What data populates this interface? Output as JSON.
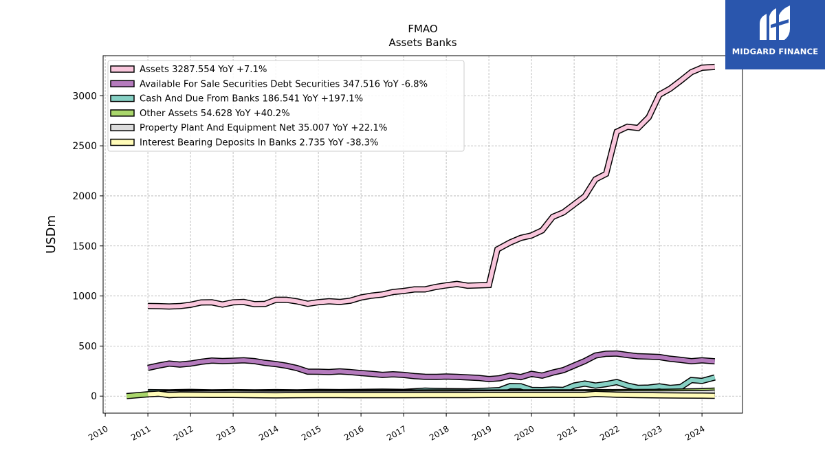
{
  "brand": {
    "name": "MIDGARD FINANCE",
    "bg_color": "#2a56ad"
  },
  "chart_data": {
    "type": "line",
    "title": "FMAO",
    "subtitle": "Assets Banks",
    "xlabel": "",
    "ylabel": "USDm",
    "xlim": [
      2009.95,
      2024.95
    ],
    "ylim": [
      -170,
      3400
    ],
    "x_ticks": [
      2010,
      2011,
      2012,
      2013,
      2014,
      2015,
      2016,
      2017,
      2018,
      2019,
      2020,
      2021,
      2022,
      2023,
      2024
    ],
    "y_ticks": [
      0,
      500,
      1000,
      1500,
      2000,
      2500,
      3000
    ],
    "grid": true,
    "legend_position": "top-left",
    "series": [
      {
        "name": "Assets",
        "legend": "Assets  3287.554 YoY +7.1%",
        "color": "#f9c6dc",
        "points": [
          [
            2011.0,
            900
          ],
          [
            2011.25,
            898
          ],
          [
            2011.5,
            895
          ],
          [
            2011.75,
            899
          ],
          [
            2012.0,
            912
          ],
          [
            2012.25,
            935
          ],
          [
            2012.5,
            937
          ],
          [
            2012.75,
            915
          ],
          [
            2013.0,
            937
          ],
          [
            2013.25,
            940
          ],
          [
            2013.5,
            918
          ],
          [
            2013.75,
            921
          ],
          [
            2014.0,
            962
          ],
          [
            2014.25,
            962
          ],
          [
            2014.5,
            946
          ],
          [
            2014.75,
            922
          ],
          [
            2015.0,
            938
          ],
          [
            2015.25,
            947
          ],
          [
            2015.5,
            940
          ],
          [
            2015.75,
            953
          ],
          [
            2016.0,
            985
          ],
          [
            2016.25,
            1003
          ],
          [
            2016.5,
            1015
          ],
          [
            2016.75,
            1040
          ],
          [
            2017.0,
            1050
          ],
          [
            2017.25,
            1066
          ],
          [
            2017.5,
            1066
          ],
          [
            2017.75,
            1090
          ],
          [
            2018.0,
            1106
          ],
          [
            2018.25,
            1120
          ],
          [
            2018.5,
            1103
          ],
          [
            2018.75,
            1106
          ],
          [
            2019.0,
            1110
          ],
          [
            2019.2,
            1465
          ],
          [
            2019.5,
            1535
          ],
          [
            2019.75,
            1580
          ],
          [
            2020.0,
            1605
          ],
          [
            2020.25,
            1655
          ],
          [
            2020.5,
            1790
          ],
          [
            2020.75,
            1835
          ],
          [
            2021.0,
            1915
          ],
          [
            2021.25,
            1995
          ],
          [
            2021.5,
            2165
          ],
          [
            2021.75,
            2220
          ],
          [
            2022.0,
            2640
          ],
          [
            2022.25,
            2690
          ],
          [
            2022.5,
            2678
          ],
          [
            2022.75,
            2785
          ],
          [
            2023.0,
            3010
          ],
          [
            2023.25,
            3070
          ],
          [
            2023.5,
            3150
          ],
          [
            2023.75,
            3235
          ],
          [
            2024.0,
            3280
          ],
          [
            2024.3,
            3287.554
          ]
        ]
      },
      {
        "name": "Available For Sale Securities Debt Securities",
        "legend": "Available For Sale Securities Debt Securities  347.516 YoY -6.8%",
        "color": "#b57bbd",
        "points": [
          [
            2011.0,
            282
          ],
          [
            2011.25,
            305
          ],
          [
            2011.5,
            325
          ],
          [
            2011.75,
            315
          ],
          [
            2012.0,
            325
          ],
          [
            2012.25,
            343
          ],
          [
            2012.5,
            355
          ],
          [
            2012.75,
            350
          ],
          [
            2013.0,
            354
          ],
          [
            2013.25,
            358
          ],
          [
            2013.5,
            350
          ],
          [
            2013.75,
            332
          ],
          [
            2014.0,
            320
          ],
          [
            2014.25,
            303
          ],
          [
            2014.5,
            280
          ],
          [
            2014.75,
            245
          ],
          [
            2015.0,
            243
          ],
          [
            2015.25,
            240
          ],
          [
            2015.5,
            247
          ],
          [
            2015.75,
            240
          ],
          [
            2016.0,
            230
          ],
          [
            2016.25,
            222
          ],
          [
            2016.5,
            212
          ],
          [
            2016.75,
            218
          ],
          [
            2017.0,
            212
          ],
          [
            2017.25,
            200
          ],
          [
            2017.5,
            193
          ],
          [
            2017.75,
            192
          ],
          [
            2018.0,
            195
          ],
          [
            2018.25,
            192
          ],
          [
            2018.5,
            187
          ],
          [
            2018.75,
            182
          ],
          [
            2019.0,
            170
          ],
          [
            2019.25,
            178
          ],
          [
            2019.5,
            205
          ],
          [
            2019.75,
            190
          ],
          [
            2020.0,
            222
          ],
          [
            2020.25,
            205
          ],
          [
            2020.5,
            235
          ],
          [
            2020.75,
            260
          ],
          [
            2021.0,
            305
          ],
          [
            2021.25,
            350
          ],
          [
            2021.5,
            405
          ],
          [
            2021.75,
            423
          ],
          [
            2022.0,
            425
          ],
          [
            2022.25,
            410
          ],
          [
            2022.5,
            398
          ],
          [
            2022.75,
            395
          ],
          [
            2023.0,
            390
          ],
          [
            2023.25,
            373
          ],
          [
            2023.5,
            362
          ],
          [
            2023.75,
            348
          ],
          [
            2024.0,
            358
          ],
          [
            2024.3,
            347.516
          ]
        ]
      },
      {
        "name": "Cash And Due From Banks",
        "legend": "Cash And Due From Banks  186.541 YoY +197.1%",
        "color": "#86d0c4",
        "points": [
          [
            2011.0,
            40
          ],
          [
            2011.5,
            38
          ],
          [
            2012.0,
            42
          ],
          [
            2012.5,
            38
          ],
          [
            2013.0,
            40
          ],
          [
            2013.5,
            38
          ],
          [
            2014.0,
            40
          ],
          [
            2014.5,
            38
          ],
          [
            2015.0,
            42
          ],
          [
            2015.5,
            40
          ],
          [
            2016.0,
            42
          ],
          [
            2016.5,
            45
          ],
          [
            2017.0,
            42
          ],
          [
            2017.25,
            48
          ],
          [
            2017.5,
            55
          ],
          [
            2017.75,
            52
          ],
          [
            2018.0,
            50
          ],
          [
            2018.5,
            48
          ],
          [
            2019.0,
            55
          ],
          [
            2019.25,
            60
          ],
          [
            2019.5,
            100
          ],
          [
            2019.75,
            98
          ],
          [
            2020.0,
            62
          ],
          [
            2020.25,
            60
          ],
          [
            2020.5,
            65
          ],
          [
            2020.75,
            62
          ],
          [
            2021.0,
            105
          ],
          [
            2021.25,
            125
          ],
          [
            2021.5,
            105
          ],
          [
            2021.75,
            120
          ],
          [
            2022.0,
            140
          ],
          [
            2022.25,
            105
          ],
          [
            2022.5,
            82
          ],
          [
            2022.75,
            85
          ],
          [
            2023.0,
            98
          ],
          [
            2023.25,
            82
          ],
          [
            2023.5,
            90
          ],
          [
            2023.75,
            160
          ],
          [
            2024.0,
            152
          ],
          [
            2024.3,
            186.541
          ]
        ]
      },
      {
        "name": "Other Assets",
        "legend": "Other Assets  54.628 YoY +40.2%",
        "color": "#a9d66b",
        "points": [
          [
            2010.5,
            0
          ],
          [
            2011.0,
            18
          ],
          [
            2011.5,
            32
          ],
          [
            2012.0,
            35
          ],
          [
            2012.5,
            33
          ],
          [
            2013.0,
            38
          ],
          [
            2013.5,
            35
          ],
          [
            2014.0,
            33
          ],
          [
            2015.0,
            35
          ],
          [
            2016.0,
            34
          ],
          [
            2017.0,
            36
          ],
          [
            2018.0,
            38
          ],
          [
            2019.0,
            36
          ],
          [
            2020.0,
            38
          ],
          [
            2021.0,
            38
          ],
          [
            2022.0,
            40
          ],
          [
            2023.0,
            42
          ],
          [
            2024.0,
            50
          ],
          [
            2024.3,
            54.628
          ]
        ]
      },
      {
        "name": "Property Plant And Equipment Net",
        "legend": "Property Plant And Equipment Net  35.007 YoY +22.1%",
        "color": "#dcdcdc",
        "points": [
          [
            2011.0,
            25
          ],
          [
            2012.0,
            26
          ],
          [
            2013.0,
            26
          ],
          [
            2014.0,
            25
          ],
          [
            2015.0,
            25
          ],
          [
            2016.0,
            25
          ],
          [
            2017.0,
            26
          ],
          [
            2018.0,
            26
          ],
          [
            2019.0,
            27
          ],
          [
            2020.0,
            27
          ],
          [
            2021.0,
            28
          ],
          [
            2022.0,
            28
          ],
          [
            2023.0,
            28
          ],
          [
            2024.0,
            30
          ],
          [
            2024.3,
            35.007
          ]
        ]
      },
      {
        "name": "Interest Bearing Deposits In Banks",
        "legend": "Interest Bearing Deposits In Banks  2.735 YoY -38.3%",
        "color": "#fffbb8",
        "points": [
          [
            2011.0,
            18
          ],
          [
            2011.25,
            25
          ],
          [
            2011.5,
            10
          ],
          [
            2011.75,
            15
          ],
          [
            2012.0,
            14
          ],
          [
            2012.5,
            12
          ],
          [
            2013.0,
            12
          ],
          [
            2013.5,
            9
          ],
          [
            2014.0,
            8
          ],
          [
            2014.5,
            9
          ],
          [
            2015.0,
            10
          ],
          [
            2015.5,
            10
          ],
          [
            2016.0,
            9
          ],
          [
            2016.5,
            9
          ],
          [
            2017.0,
            9
          ],
          [
            2017.5,
            10
          ],
          [
            2018.0,
            10
          ],
          [
            2018.5,
            10
          ],
          [
            2019.0,
            12
          ],
          [
            2019.5,
            12
          ],
          [
            2020.0,
            12
          ],
          [
            2020.5,
            12
          ],
          [
            2021.0,
            12
          ],
          [
            2021.25,
            12
          ],
          [
            2021.5,
            22
          ],
          [
            2021.75,
            18
          ],
          [
            2022.0,
            14
          ],
          [
            2022.5,
            10
          ],
          [
            2023.0,
            8
          ],
          [
            2023.5,
            6
          ],
          [
            2024.0,
            5
          ],
          [
            2024.3,
            2.735
          ]
        ]
      }
    ]
  }
}
